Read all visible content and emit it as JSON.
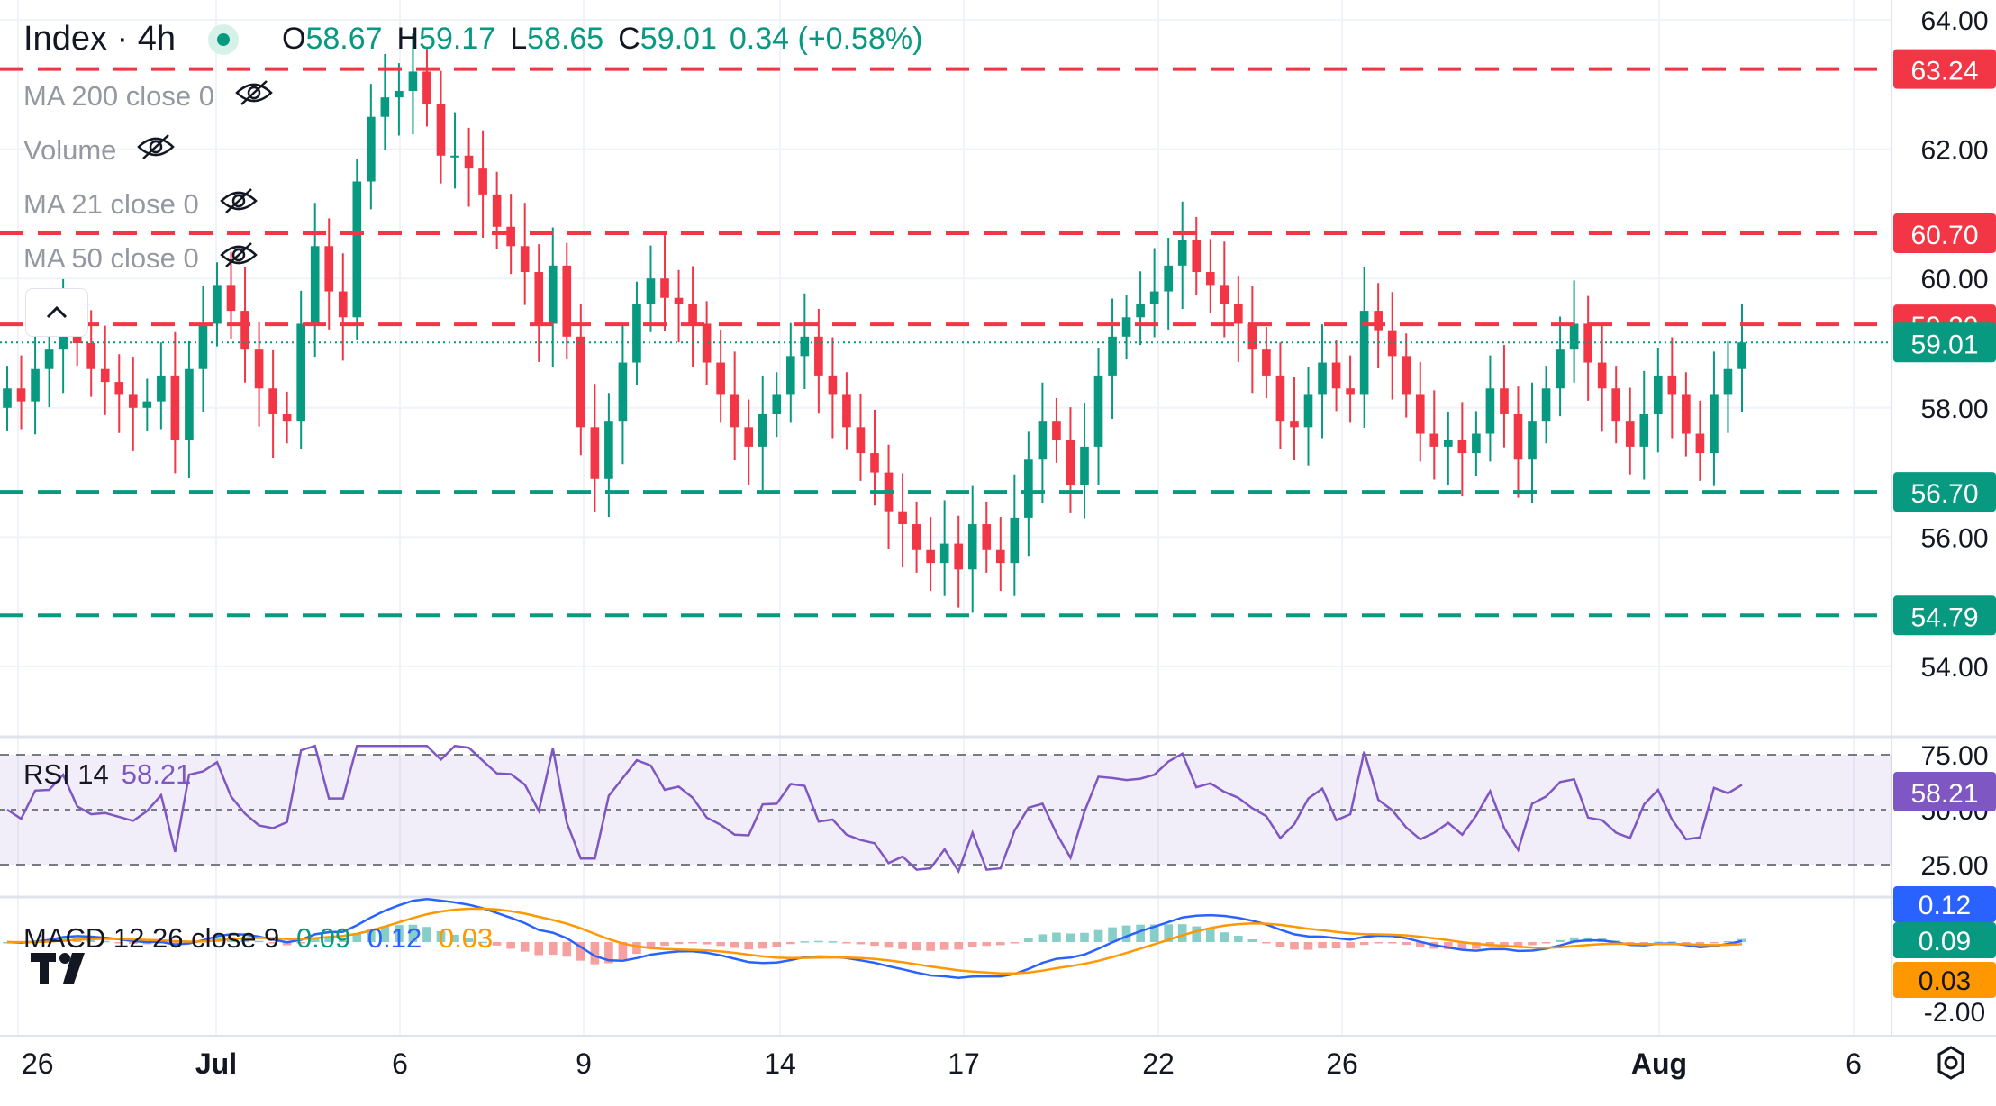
{
  "header": {
    "title": "Index · 4h",
    "ohlc": [
      {
        "k": "O",
        "v": "58.67"
      },
      {
        "k": "H",
        "v": "59.17"
      },
      {
        "k": "L",
        "v": "58.65"
      },
      {
        "k": "C",
        "v": "59.01"
      }
    ],
    "change": "0.34 (+0.58%)"
  },
  "indicators": [
    {
      "label": "MA 200 close 0",
      "icon": "eye-off-icon"
    },
    {
      "label": "Volume",
      "icon": "eye-off-icon"
    },
    {
      "label": "MA 21 close 0",
      "icon": "eye-off-icon"
    },
    {
      "label": "MA 50 close 0",
      "icon": "eye-off-icon"
    }
  ],
  "rsi_legend": {
    "name": "RSI 14",
    "value": "58.21"
  },
  "macd_legend": {
    "name": "MACD 12 26 close 9",
    "hist": "0.09",
    "macd": "0.12",
    "signal": "0.03"
  },
  "colors": {
    "up": "#089981",
    "down": "#f23645",
    "rsi": "#7e57c2",
    "macd": "#2962ff",
    "signal": "#ff9800",
    "level_red": "#f23645",
    "level_green": "#089981"
  },
  "chart_data": {
    "type": "candlestick",
    "x_ticks": [
      "26",
      "Jul",
      "6",
      "9",
      "14",
      "17",
      "22",
      "26",
      "Aug",
      "6"
    ],
    "price_axis": {
      "ticks": [
        "64.00",
        "62.00",
        "60.00",
        "58.00",
        "56.00",
        "54.00"
      ],
      "range": [
        53.0,
        64.3
      ]
    },
    "levels": [
      {
        "value": 63.24,
        "label": "63.24",
        "color": "red"
      },
      {
        "value": 60.7,
        "label": "60.70",
        "color": "red"
      },
      {
        "value": 59.29,
        "label": "59.29",
        "color": "red"
      },
      {
        "value": 56.7,
        "label": "56.70",
        "color": "green"
      },
      {
        "value": 54.79,
        "label": "54.79",
        "color": "green"
      }
    ],
    "last_price": {
      "value": 59.01,
      "label": "59.01"
    },
    "close_series": [
      58.3,
      58.1,
      58.6,
      58.9,
      59.4,
      59.0,
      58.6,
      58.4,
      58.2,
      58.0,
      58.1,
      58.5,
      57.5,
      58.6,
      59.3,
      59.9,
      59.5,
      58.9,
      58.3,
      57.9,
      57.8,
      59.3,
      60.5,
      59.8,
      59.4,
      61.5,
      62.5,
      62.8,
      62.9,
      63.2,
      62.7,
      61.9,
      61.9,
      61.7,
      61.3,
      60.8,
      60.5,
      60.1,
      59.3,
      60.2,
      59.1,
      57.7,
      56.9,
      57.8,
      58.7,
      59.6,
      60.0,
      59.7,
      59.6,
      59.3,
      58.7,
      58.2,
      57.7,
      57.4,
      57.9,
      58.2,
      58.8,
      59.1,
      58.5,
      58.2,
      57.7,
      57.3,
      57.0,
      56.4,
      56.2,
      55.8,
      55.6,
      55.9,
      55.5,
      56.2,
      55.8,
      55.6,
      56.3,
      57.2,
      57.8,
      57.5,
      56.8,
      57.4,
      58.5,
      59.1,
      59.4,
      59.6,
      59.8,
      60.2,
      60.6,
      60.1,
      59.9,
      59.6,
      59.3,
      58.9,
      58.5,
      57.8,
      57.7,
      58.2,
      58.7,
      58.3,
      58.2,
      59.5,
      59.2,
      58.8,
      58.2,
      57.6,
      57.4,
      57.5,
      57.3,
      57.6,
      58.3,
      57.9,
      57.2,
      57.8,
      58.3,
      58.9,
      59.3,
      58.7,
      58.3,
      57.8,
      57.4,
      57.9,
      58.5,
      58.2,
      57.6,
      57.3,
      58.2,
      58.6,
      59.01
    ],
    "rsi": {
      "name": "RSI 14",
      "value": 58.21,
      "bands": [
        25,
        50,
        75
      ],
      "ticks": [
        "75.00",
        "50.00",
        "25.00"
      ]
    },
    "macd": {
      "name": "MACD 12 26 close 9",
      "macd_value": 0.12,
      "signal_value": 0.03,
      "hist_value": 0.09,
      "ticks": [
        "0.12",
        "0.09",
        "0.03",
        "-2.00"
      ]
    }
  }
}
